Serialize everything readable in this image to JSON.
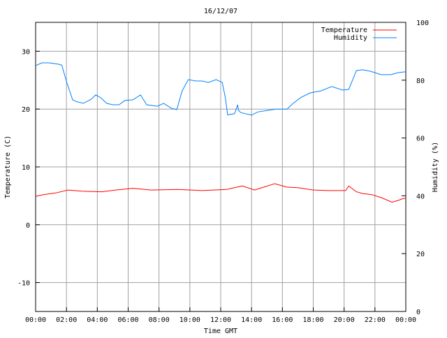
{
  "chart_data": {
    "type": "line",
    "title": "16/12/07",
    "xlabel": "Time GMT",
    "ylabel": "Temperature (C)",
    "y2label": "Humidity (%)",
    "xlim": [
      0,
      24
    ],
    "ylim": [
      -15,
      35
    ],
    "y2lim": [
      0,
      100
    ],
    "grid": true,
    "legend_position": "top-right",
    "x_ticks": [
      {
        "v": 0,
        "label": "00:00"
      },
      {
        "v": 2,
        "label": "02:00"
      },
      {
        "v": 4,
        "label": "04:00"
      },
      {
        "v": 6,
        "label": "06:00"
      },
      {
        "v": 8,
        "label": "08:00"
      },
      {
        "v": 10,
        "label": "10:00"
      },
      {
        "v": 12,
        "label": "12:00"
      },
      {
        "v": 14,
        "label": "14:00"
      },
      {
        "v": 16,
        "label": "16:00"
      },
      {
        "v": 18,
        "label": "18:00"
      },
      {
        "v": 20,
        "label": "20:00"
      },
      {
        "v": 22,
        "label": "22:00"
      },
      {
        "v": 24,
        "label": "00:00"
      }
    ],
    "y_ticks": [
      {
        "v": -10,
        "label": "-10"
      },
      {
        "v": 0,
        "label": "0"
      },
      {
        "v": 10,
        "label": "10"
      },
      {
        "v": 20,
        "label": "20"
      },
      {
        "v": 30,
        "label": "30"
      }
    ],
    "y2_ticks": [
      {
        "v": 0,
        "label": "0"
      },
      {
        "v": 20,
        "label": "20"
      },
      {
        "v": 40,
        "label": "40"
      },
      {
        "v": 60,
        "label": "60"
      },
      {
        "v": 80,
        "label": "80"
      },
      {
        "v": 100,
        "label": "100"
      }
    ],
    "series": [
      {
        "name": "Temperature",
        "axis": "y",
        "color": "#ff0000",
        "x": [
          0,
          0.5,
          1.3,
          2.1,
          3,
          4.3,
          5.2,
          6.3,
          7.5,
          9.2,
          10.8,
          12.4,
          13.4,
          14.2,
          15.5,
          16.3,
          17,
          18,
          19,
          20.1,
          20.3,
          20.8,
          21.2,
          21.8,
          22.4,
          23.1,
          23.5,
          23.8,
          24
        ],
        "y": [
          4.9,
          5.2,
          5.5,
          6.0,
          5.8,
          5.7,
          6.0,
          6.3,
          6.0,
          6.1,
          5.9,
          6.1,
          6.7,
          6.0,
          7.1,
          6.5,
          6.4,
          6.0,
          5.9,
          5.9,
          6.7,
          5.7,
          5.4,
          5.2,
          4.7,
          3.9,
          4.2,
          4.5,
          4.6
        ]
      },
      {
        "name": "Humidity",
        "axis": "y2",
        "color": "#0080ff",
        "x": [
          0,
          0.4,
          0.9,
          1.5,
          1.7,
          2.0,
          2.4,
          2.7,
          3.1,
          3.6,
          3.9,
          4.2,
          4.6,
          5.0,
          5.4,
          5.8,
          6.3,
          6.8,
          7.2,
          7.9,
          8.3,
          8.8,
          9.15,
          9.5,
          9.9,
          10.4,
          10.8,
          11.2,
          11.7,
          12.1,
          12.3,
          12.45,
          12.9,
          13.1,
          13.15,
          13.3,
          14.0,
          14.4,
          15.1,
          15.6,
          16.3,
          16.7,
          17.2,
          17.8,
          18.5,
          19.2,
          19.9,
          20.3,
          20.8,
          21.2,
          21.7,
          22.4,
          23.05,
          23.5,
          24
        ],
        "y": [
          85.0,
          86.0,
          86.0,
          85.5,
          85.2,
          79.5,
          73.2,
          72.5,
          72.0,
          73.4,
          74.9,
          74.0,
          72.0,
          71.5,
          71.5,
          73.0,
          73.2,
          74.9,
          71.5,
          71.0,
          72.0,
          70.3,
          69.8,
          76.3,
          80.2,
          79.7,
          79.7,
          79.2,
          80.2,
          79.2,
          74.0,
          68.0,
          68.4,
          71.5,
          69.6,
          68.8,
          67.9,
          69.0,
          69.6,
          70.0,
          70.0,
          72.0,
          74.0,
          75.6,
          76.3,
          77.8,
          76.6,
          76.8,
          83.3,
          83.6,
          83.1,
          81.9,
          81.9,
          82.6,
          82.9
        ]
      }
    ]
  }
}
